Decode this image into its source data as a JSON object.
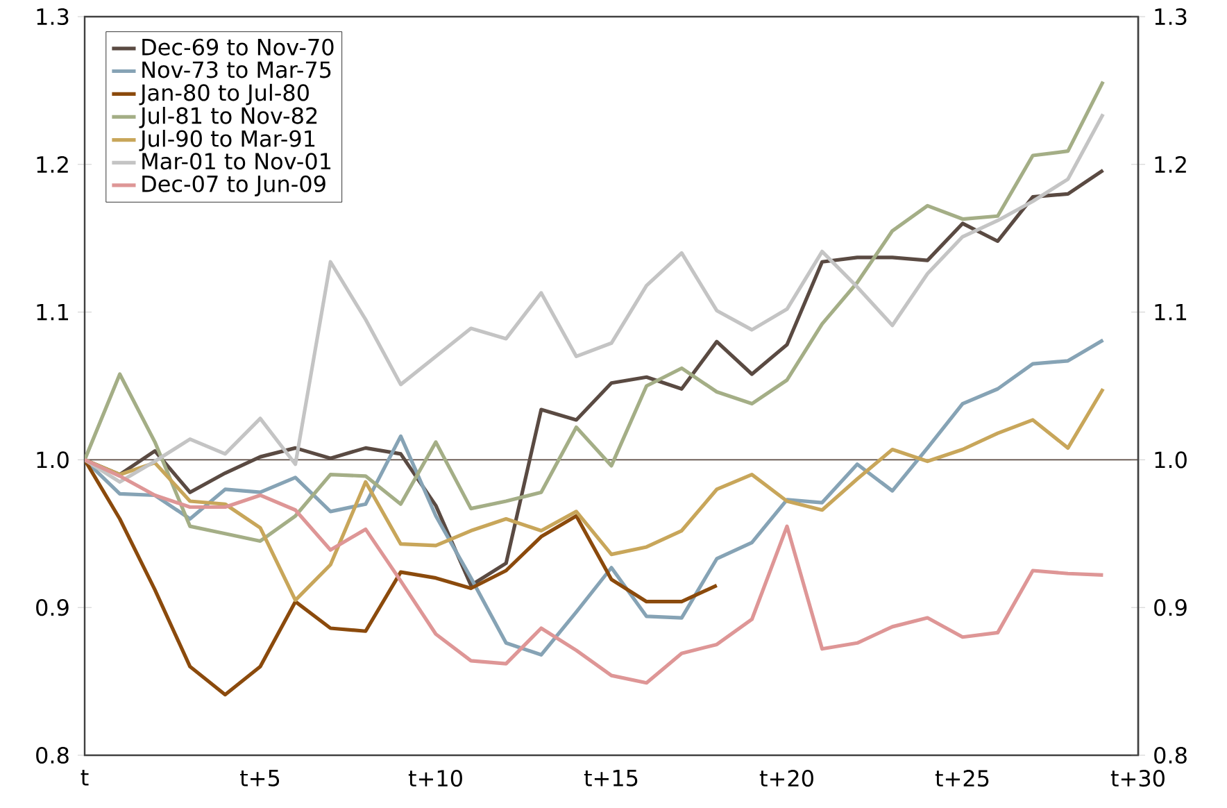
{
  "chart_data": {
    "type": "line",
    "categories": [
      "t",
      null,
      null,
      null,
      null,
      "t+5",
      null,
      null,
      null,
      null,
      "t+10",
      null,
      null,
      null,
      null,
      "t+15",
      null,
      null,
      null,
      null,
      "t+20",
      null,
      null,
      null,
      null,
      "t+25",
      null,
      null,
      null,
      null,
      "t+30"
    ],
    "series": [
      {
        "name": "Dec-69 to Nov-70",
        "color": "#5a4a42",
        "values": [
          1.0,
          0.99,
          1.006,
          0.978,
          0.991,
          1.002,
          1.008,
          1.001,
          1.008,
          1.004,
          0.969,
          0.915,
          0.93,
          1.034,
          1.027,
          1.052,
          1.056,
          1.048,
          1.08,
          1.058,
          1.078,
          1.134,
          1.137,
          1.137,
          1.135,
          1.16,
          1.148,
          1.178,
          1.18,
          1.196,
          null
        ]
      },
      {
        "name": "Nov-73 to Mar-75",
        "color": "#86a3b5",
        "values": [
          1.0,
          0.977,
          0.976,
          0.96,
          0.98,
          0.978,
          0.988,
          0.965,
          0.97,
          1.016,
          0.962,
          0.92,
          0.876,
          0.868,
          0.897,
          0.927,
          0.894,
          0.893,
          0.933,
          0.944,
          0.973,
          0.971,
          0.997,
          0.979,
          1.008,
          1.038,
          1.048,
          1.065,
          1.067,
          1.081,
          null
        ]
      },
      {
        "name": "Jan-80 to Jul-80",
        "color": "#8b4a0c",
        "values": [
          1.0,
          0.96,
          0.912,
          0.86,
          0.841,
          0.86,
          0.904,
          0.886,
          0.884,
          0.924,
          0.92,
          0.913,
          0.925,
          0.948,
          0.962,
          0.919,
          0.904,
          0.904,
          0.915,
          null,
          null,
          null,
          null,
          null,
          null,
          null,
          null,
          null,
          null,
          null,
          null
        ]
      },
      {
        "name": "Jul-81 to Nov-82",
        "color": "#a4ae86",
        "values": [
          1.0,
          1.058,
          1.012,
          0.955,
          0.95,
          0.945,
          0.962,
          0.99,
          0.989,
          0.97,
          1.012,
          0.967,
          0.972,
          0.978,
          1.022,
          0.996,
          1.05,
          1.062,
          1.046,
          1.038,
          1.054,
          1.092,
          1.12,
          1.155,
          1.172,
          1.163,
          1.165,
          1.206,
          1.209,
          1.256,
          null
        ]
      },
      {
        "name": "Jul-90 to Mar-91",
        "color": "#c8a65a",
        "values": [
          1.0,
          0.99,
          0.998,
          0.972,
          0.97,
          0.954,
          0.905,
          0.929,
          0.985,
          0.943,
          0.942,
          0.952,
          0.96,
          0.952,
          0.965,
          0.936,
          0.941,
          0.952,
          0.98,
          0.99,
          0.972,
          0.966,
          0.987,
          1.007,
          0.999,
          1.007,
          1.018,
          1.027,
          1.008,
          1.048,
          null
        ]
      },
      {
        "name": "Mar-01 to Nov-01",
        "color": "#c4c4c4",
        "values": [
          1.0,
          0.985,
          0.999,
          1.014,
          1.004,
          1.028,
          0.997,
          1.134,
          1.095,
          1.051,
          1.07,
          1.089,
          1.082,
          1.113,
          1.07,
          1.079,
          1.118,
          1.14,
          1.101,
          1.088,
          1.102,
          1.141,
          1.117,
          1.091,
          1.126,
          1.151,
          1.162,
          1.175,
          1.19,
          1.234,
          null
        ]
      },
      {
        "name": "Dec-07 to Jun-09",
        "color": "#de9696",
        "values": [
          1.0,
          0.989,
          0.976,
          0.968,
          0.968,
          0.976,
          0.966,
          0.939,
          0.953,
          0.918,
          0.882,
          0.864,
          0.862,
          0.886,
          0.871,
          0.854,
          0.849,
          0.869,
          0.875,
          0.892,
          0.955,
          0.872,
          0.876,
          0.887,
          0.893,
          0.88,
          0.883,
          0.925,
          0.923,
          0.922,
          null
        ]
      }
    ],
    "ylim": [
      0.8,
      1.3
    ],
    "yticks": [
      {
        "value": 0.8,
        "label": "0.8"
      },
      {
        "value": 0.9,
        "label": "0.9"
      },
      {
        "value": 1.0,
        "label": "1.0"
      },
      {
        "value": 1.1,
        "label": "1.1"
      },
      {
        "value": 1.2,
        "label": "1.2"
      },
      {
        "value": 1.3,
        "label": "1.3"
      }
    ],
    "y2lim": [
      0.8,
      1.3
    ],
    "y2ticks": [
      {
        "value": 0.8,
        "label": "0.8"
      },
      {
        "value": 0.9,
        "label": "0.9"
      },
      {
        "value": 1.0,
        "label": "1.0"
      },
      {
        "value": 1.1,
        "label": "1.1"
      },
      {
        "value": 1.2,
        "label": "1.2"
      },
      {
        "value": 1.3,
        "label": "1.3"
      }
    ],
    "ref_lines": [
      {
        "axis": "y",
        "value": 1.0,
        "color": "#5a4a42"
      }
    ],
    "grid": false,
    "legend": "top left",
    "marker": "none",
    "line_style": "solid"
  }
}
